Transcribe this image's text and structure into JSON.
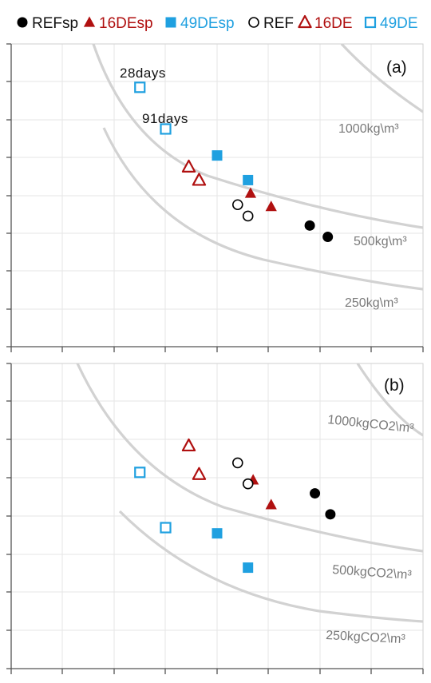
{
  "legend": {
    "items": [
      {
        "label": "REFsp",
        "marker": "circle-filled",
        "color": "#000000"
      },
      {
        "label": "16DEsp",
        "marker": "triangle-filled",
        "color": "#b01010"
      },
      {
        "label": "49DEsp",
        "marker": "square-filled",
        "color": "#1fa0e0"
      },
      {
        "label": "REF",
        "marker": "circle-open",
        "color": "#000000"
      },
      {
        "label": "16DE",
        "marker": "triangle-open",
        "color": "#b01010"
      },
      {
        "label": "49DE",
        "marker": "square-open",
        "color": "#1fa0e0"
      }
    ]
  },
  "chart_data": [
    {
      "type": "scatter",
      "panel_label": "(a)",
      "xlabel": "",
      "ylabel": "",
      "grid": true,
      "series": [
        {
          "name": "REFsp",
          "points": [
            [
              5.8,
              3.2
            ],
            [
              6.15,
              2.9
            ]
          ]
        },
        {
          "name": "16DEsp",
          "points": [
            [
              4.65,
              4.05
            ],
            [
              5.05,
              3.7
            ]
          ]
        },
        {
          "name": "49DEsp",
          "points": [
            [
              4.0,
              5.05
            ],
            [
              4.6,
              4.4
            ]
          ]
        },
        {
          "name": "REF",
          "points": [
            [
              4.4,
              3.75
            ],
            [
              4.6,
              3.45
            ]
          ]
        },
        {
          "name": "16DE",
          "points": [
            [
              3.45,
              4.75
            ],
            [
              3.65,
              4.4
            ]
          ]
        },
        {
          "name": "49DE",
          "points": [
            [
              2.5,
              6.85
            ],
            [
              3.0,
              5.75
            ]
          ]
        }
      ],
      "curves": [
        {
          "label": "1000kg\\m³"
        },
        {
          "label": "500kg\\m³"
        },
        {
          "label": "250kg\\m³"
        }
      ],
      "annotations": [
        "28days",
        "91days"
      ]
    },
    {
      "type": "scatter",
      "panel_label": "(b)",
      "xlabel": "",
      "ylabel": "",
      "grid": true,
      "series": [
        {
          "name": "REFsp",
          "points": [
            [
              5.9,
              4.6
            ],
            [
              6.2,
              4.05
            ]
          ]
        },
        {
          "name": "16DEsp",
          "points": [
            [
              4.7,
              4.95
            ],
            [
              5.05,
              4.3
            ]
          ]
        },
        {
          "name": "49DEsp",
          "points": [
            [
              4.0,
              3.55
            ],
            [
              4.6,
              2.65
            ]
          ]
        },
        {
          "name": "REF",
          "points": [
            [
              4.4,
              5.4
            ],
            [
              4.6,
              4.85
            ]
          ]
        },
        {
          "name": "16DE",
          "points": [
            [
              3.45,
              5.85
            ],
            [
              3.65,
              5.1
            ]
          ]
        },
        {
          "name": "49DE",
          "points": [
            [
              2.5,
              5.15
            ],
            [
              3.0,
              3.7
            ]
          ]
        }
      ],
      "curves": [
        {
          "label": "1000kgCO2\\m³"
        },
        {
          "label": "500kgCO2\\m³"
        },
        {
          "label": "250kgCO2\\m³"
        }
      ]
    }
  ]
}
